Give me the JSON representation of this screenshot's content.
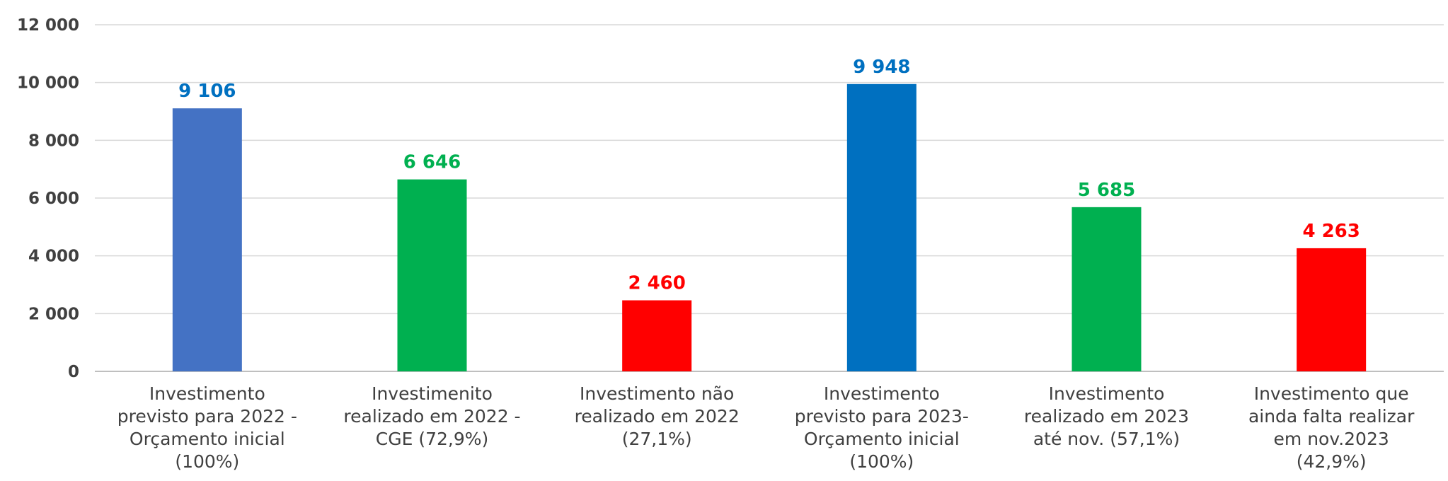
{
  "chart_data": {
    "type": "bar",
    "title": "",
    "xlabel": "",
    "ylabel": "",
    "ylim": [
      0,
      12000
    ],
    "yticks": [
      {
        "value": 0,
        "label": "0"
      },
      {
        "value": 2000,
        "label": "2 000"
      },
      {
        "value": 4000,
        "label": "4 000"
      },
      {
        "value": 6000,
        "label": "6 000"
      },
      {
        "value": 8000,
        "label": "8 000"
      },
      {
        "value": 10000,
        "label": "10 000"
      },
      {
        "value": 12000,
        "label": "12 000"
      }
    ],
    "grid": true,
    "legend": "none",
    "categories": [
      [
        "Investimento",
        "previsto para 2022 -",
        "Orçamento inicial",
        "(100%)"
      ],
      [
        "Investimenito",
        "realizado em 2022 -",
        "CGE (72,9%)"
      ],
      [
        "Investimento não",
        "realizado em 2022",
        "(27,1%)"
      ],
      [
        "Investimento",
        "previsto para 2023-",
        "Orçamento inicial",
        "(100%)"
      ],
      [
        "Investimento",
        "realizado em 2023",
        "até nov. (57,1%)"
      ],
      [
        "Investimento que",
        "ainda falta realizar",
        "em nov.2023",
        "(42,9%)"
      ]
    ],
    "values": [
      9106,
      6646,
      2460,
      9948,
      5685,
      4263
    ],
    "value_labels": [
      "9 106",
      "6 646",
      "2 460",
      "9 948",
      "5 685",
      "4 263"
    ],
    "bar_colors": [
      "#4472C4",
      "#00B050",
      "#FF0000",
      "#0070C0",
      "#00B050",
      "#FF0000"
    ],
    "label_colors": [
      "#0070C0",
      "#00B050",
      "#FF0000",
      "#0070C0",
      "#00B050",
      "#FF0000"
    ]
  }
}
